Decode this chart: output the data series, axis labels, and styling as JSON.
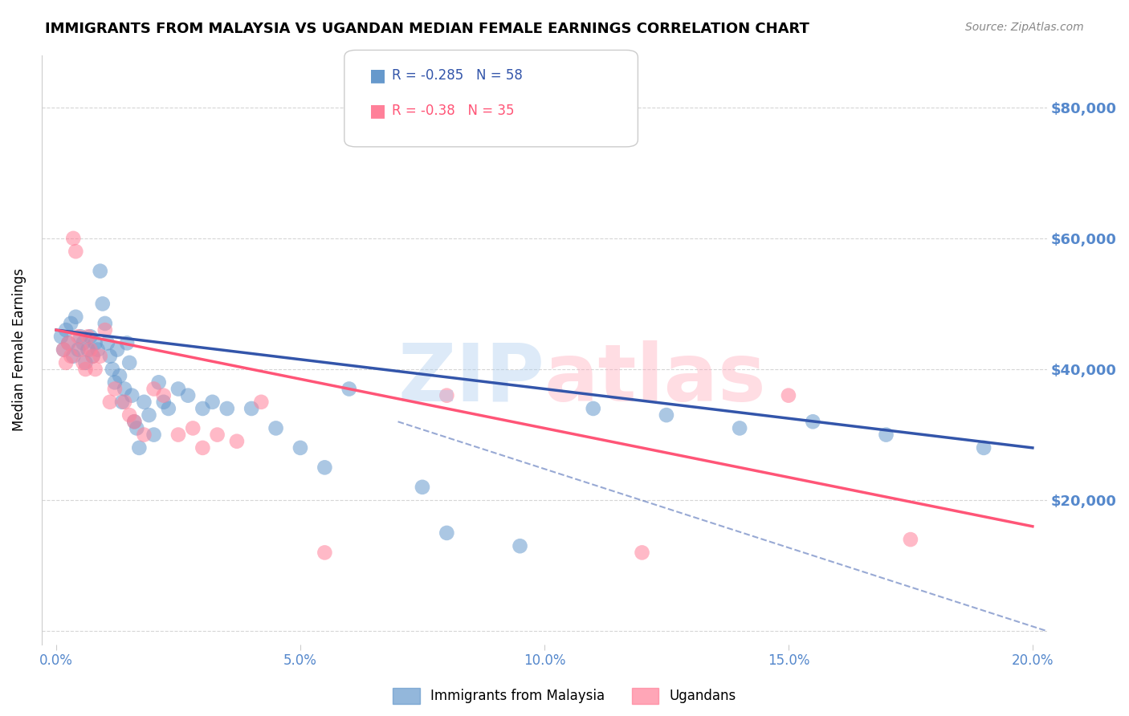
{
  "title": "IMMIGRANTS FROM MALAYSIA VS UGANDAN MEDIAN FEMALE EARNINGS CORRELATION CHART",
  "source": "Source: ZipAtlas.com",
  "ylabel": "Median Female Earnings",
  "xlabel_ticks": [
    "0.0%",
    "5.0%",
    "10.0%",
    "15.0%",
    "20.0%"
  ],
  "xlabel_vals": [
    0.0,
    5.0,
    10.0,
    15.0,
    20.0
  ],
  "ytick_vals": [
    0,
    20000,
    40000,
    60000,
    80000
  ],
  "ytick_labels": [
    "",
    "$20,000",
    "$40,000",
    "$60,000",
    "$80,000"
  ],
  "xlim": [
    -0.3,
    20.3
  ],
  "ylim": [
    -2000,
    88000
  ],
  "malaysia_R": -0.285,
  "malaysia_N": 58,
  "uganda_R": -0.38,
  "uganda_N": 35,
  "malaysia_color": "#6699CC",
  "uganda_color": "#FF8099",
  "malaysia_line_color": "#3355AA",
  "uganda_line_color": "#FF5577",
  "background_color": "#FFFFFF",
  "grid_color": "#CCCCCC",
  "axis_label_color": "#5588CC",
  "watermark_zip_color": "#AACCEE",
  "watermark_atlas_color": "#FFAABB",
  "malaysia_x": [
    0.1,
    0.15,
    0.2,
    0.25,
    0.3,
    0.35,
    0.4,
    0.45,
    0.5,
    0.55,
    0.6,
    0.65,
    0.7,
    0.75,
    0.8,
    0.85,
    0.9,
    0.95,
    1.0,
    1.05,
    1.1,
    1.15,
    1.2,
    1.25,
    1.3,
    1.35,
    1.4,
    1.45,
    1.5,
    1.55,
    1.6,
    1.65,
    1.7,
    1.8,
    1.9,
    2.0,
    2.1,
    2.2,
    2.3,
    2.5,
    2.7,
    3.0,
    3.2,
    3.5,
    4.0,
    4.5,
    5.0,
    5.5,
    6.0,
    7.5,
    8.0,
    9.5,
    11.0,
    12.5,
    14.0,
    15.5,
    17.0,
    19.0
  ],
  "malaysia_y": [
    45000,
    43000,
    46000,
    44000,
    47000,
    42000,
    48000,
    43000,
    45000,
    44000,
    41000,
    43000,
    45000,
    42000,
    44000,
    43000,
    55000,
    50000,
    47000,
    44000,
    42000,
    40000,
    38000,
    43000,
    39000,
    35000,
    37000,
    44000,
    41000,
    36000,
    32000,
    31000,
    28000,
    35000,
    33000,
    30000,
    38000,
    35000,
    34000,
    37000,
    36000,
    34000,
    35000,
    34000,
    34000,
    31000,
    28000,
    25000,
    37000,
    22000,
    15000,
    13000,
    34000,
    33000,
    31000,
    32000,
    30000,
    28000
  ],
  "uganda_x": [
    0.15,
    0.2,
    0.25,
    0.3,
    0.35,
    0.4,
    0.45,
    0.5,
    0.55,
    0.6,
    0.65,
    0.7,
    0.75,
    0.8,
    0.9,
    1.0,
    1.1,
    1.2,
    1.4,
    1.5,
    1.6,
    1.8,
    2.0,
    2.2,
    2.5,
    2.8,
    3.0,
    3.3,
    3.7,
    4.2,
    5.5,
    8.0,
    12.0,
    15.0,
    17.5
  ],
  "uganda_y": [
    43000,
    41000,
    44000,
    42000,
    60000,
    58000,
    45000,
    43000,
    41000,
    40000,
    45000,
    43000,
    42000,
    40000,
    42000,
    46000,
    35000,
    37000,
    35000,
    33000,
    32000,
    30000,
    37000,
    36000,
    30000,
    31000,
    28000,
    30000,
    29000,
    35000,
    12000,
    36000,
    12000,
    36000,
    14000
  ],
  "malaysia_trend_x": [
    0,
    20
  ],
  "malaysia_trend_y": [
    46000,
    28000
  ],
  "uganda_trend_x": [
    0,
    20
  ],
  "uganda_trend_y": [
    46000,
    16000
  ],
  "dashed_trend_x": [
    7,
    20.3
  ],
  "dashed_trend_y": [
    32000,
    0
  ]
}
